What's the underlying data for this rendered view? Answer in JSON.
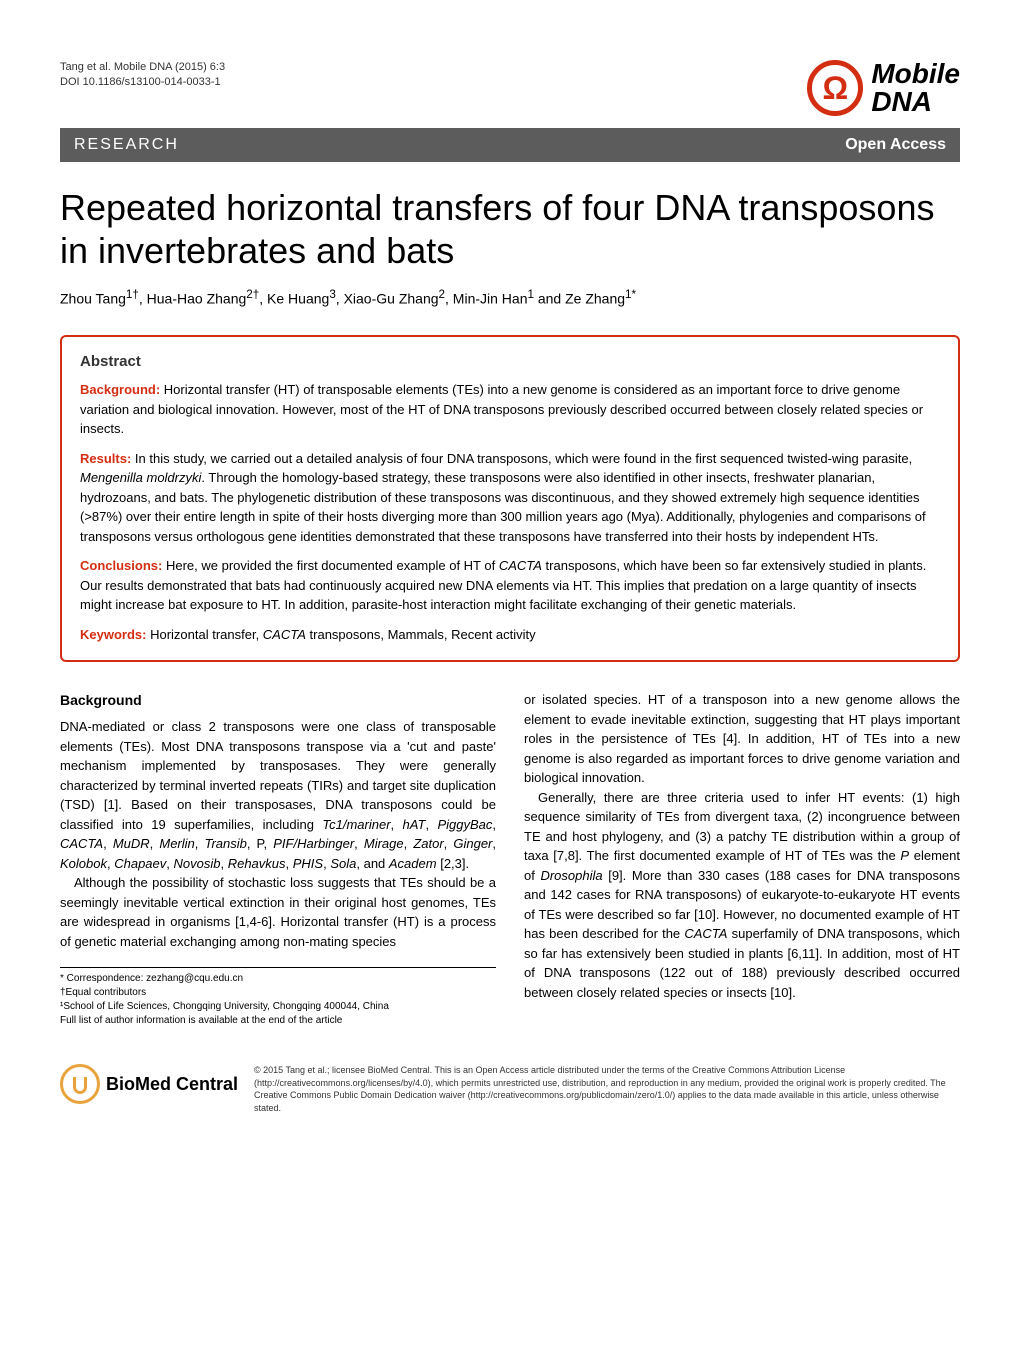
{
  "header": {
    "citation_line1": "Tang et al. Mobile DNA (2015) 6:3",
    "citation_line2": "DOI 10.1186/s13100-014-0033-1",
    "journal_name_line1": "Mobile",
    "journal_name_line2": "DNA"
  },
  "banner": {
    "left": "RESEARCH",
    "right": "Open Access"
  },
  "article": {
    "title": "Repeated horizontal transfers of four DNA transposons in invertebrates and bats",
    "authors_html": "Zhou Tang<sup>1†</sup>, Hua-Hao Zhang<sup>2†</sup>, Ke Huang<sup>3</sup>, Xiao-Gu Zhang<sup>2</sup>, Min-Jin Han<sup>1</sup> and Ze Zhang<sup>1*</sup>"
  },
  "abstract": {
    "heading": "Abstract",
    "background_label": "Background:",
    "background_text": " Horizontal transfer (HT) of transposable elements (TEs) into a new genome is considered as an important force to drive genome variation and biological innovation. However, most of the HT of DNA transposons previously described occurred between closely related species or insects.",
    "results_label": "Results:",
    "results_text": " In this study, we carried out a detailed analysis of four DNA transposons, which were found in the first sequenced twisted-wing parasite, Mengenilla moldrzyki. Through the homology-based strategy, these transposons were also identified in other insects, freshwater planarian, hydrozoans, and bats. The phylogenetic distribution of these transposons was discontinuous, and they showed extremely high sequence identities (>87%) over their entire length in spite of their hosts diverging more than 300 million years ago (Mya). Additionally, phylogenies and comparisons of transposons versus orthologous gene identities demonstrated that these transposons have transferred into their hosts by independent HTs.",
    "conclusions_label": "Conclusions:",
    "conclusions_text": " Here, we provided the first documented example of HT of CACTA transposons, which have been so far extensively studied in plants. Our results demonstrated that bats had continuously acquired new DNA elements via HT. This implies that predation on a large quantity of insects might increase bat exposure to HT. In addition, parasite-host interaction might facilitate exchanging of their genetic materials.",
    "keywords_label": "Keywords:",
    "keywords_text": " Horizontal transfer, CACTA transposons, Mammals, Recent activity"
  },
  "body": {
    "background_heading": "Background",
    "col1_p1": "DNA-mediated or class 2 transposons were one class of transposable elements (TEs). Most DNA transposons transpose via a 'cut and paste' mechanism implemented by transposases. They were generally characterized by terminal inverted repeats (TIRs) and target site duplication (TSD) [1]. Based on their transposases, DNA transposons could be classified into 19 superfamilies, including Tc1/mariner, hAT, PiggyBac, CACTA, MuDR, Merlin, Transib, P, PIF/Harbinger, Mirage, Zator, Ginger, Kolobok, Chapaev, Novosib, Rehavkus, PHIS, Sola, and Academ [2,3].",
    "col1_p2": "Although the possibility of stochastic loss suggests that TEs should be a seemingly inevitable vertical extinction in their original host genomes, TEs are widespread in organisms [1,4-6]. Horizontal transfer (HT) is a process of genetic material exchanging among non-mating species",
    "col2_p1": "or isolated species. HT of a transposon into a new genome allows the element to evade inevitable extinction, suggesting that HT plays important roles in the persistence of TEs [4]. In addition, HT of TEs into a new genome is also regarded as important forces to drive genome variation and biological innovation.",
    "col2_p2": "Generally, there are three criteria used to infer HT events: (1) high sequence similarity of TEs from divergent taxa, (2) incongruence between TE and host phylogeny, and (3) a patchy TE distribution within a group of taxa [7,8]. The first documented example of HT of TEs was the P element of Drosophila [9]. More than 330 cases (188 cases for DNA transposons and 142 cases for RNA transposons) of eukaryote-to-eukaryote HT events of TEs were described so far [10]. However, no documented example of HT has been described for the CACTA superfamily of DNA transposons, which so far has extensively been studied in plants [6,11]. In addition, most of HT of DNA transposons (122 out of 188) previously described occurred between closely related species or insects [10]."
  },
  "footnotes": {
    "correspondence": "* Correspondence: zezhang@cqu.edu.cn",
    "equal": "†Equal contributors",
    "affiliation": "¹School of Life Sciences, Chongqing University, Chongqing 400044, China",
    "fulllist": "Full list of author information is available at the end of the article"
  },
  "footer": {
    "bmc_name": "BioMed Central",
    "copyright": "© 2015 Tang et al.; licensee BioMed Central. This is an Open Access article distributed under the terms of the Creative Commons Attribution License (http://creativecommons.org/licenses/by/4.0), which permits unrestricted use, distribution, and reproduction in any medium, provided the original work is properly credited. The Creative Commons Public Domain Dedication waiver (http://creativecommons.org/publicdomain/zero/1.0/) applies to the data made available in this article, unless otherwise stated."
  },
  "colors": {
    "accent": "#d42e12",
    "banner_bg": "#5c5c5c",
    "bmc_orange": "#e8a33d"
  }
}
